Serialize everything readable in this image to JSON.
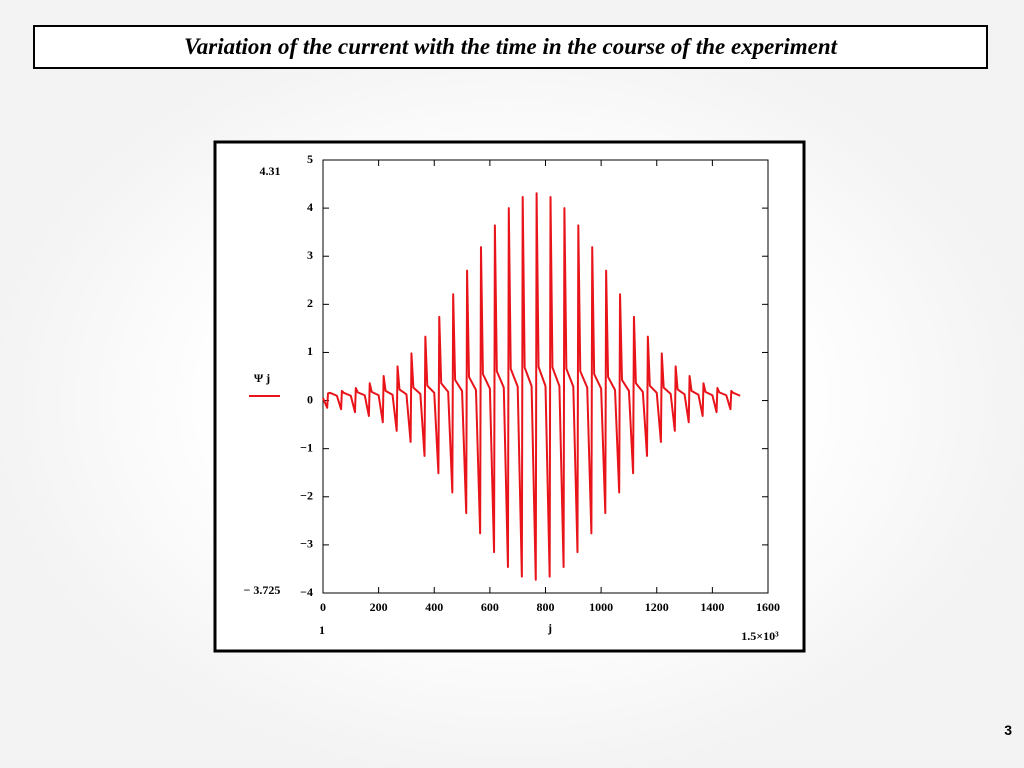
{
  "title": "Variation of the current with the time in the course of the experiment",
  "page_number": "3",
  "chart_data": {
    "type": "line",
    "x_label": "j",
    "plot_range": {
      "ymax": 4.31,
      "ymin": {
        "value": -3.725,
        "label": "− 3.725"
      },
      "xmin": 1,
      "xmax": {
        "value": 1500,
        "label": "1.5×10³"
      }
    },
    "xlim": [
      0,
      1600
    ],
    "xticks": [
      0,
      200,
      400,
      600,
      800,
      1000,
      1200,
      1400,
      1600
    ],
    "ylim": [
      -4,
      5
    ],
    "yticks": [
      {
        "value": -4,
        "label": "−4"
      },
      {
        "value": -3,
        "label": "−3"
      },
      {
        "value": -2,
        "label": "−2"
      },
      {
        "value": -1,
        "label": "−1"
      },
      0,
      1,
      2,
      3,
      4,
      5
    ],
    "grid": false,
    "x": [
      0,
      15,
      18,
      25,
      50,
      65,
      68,
      75,
      100,
      115,
      118,
      125,
      150,
      165,
      168,
      175,
      200,
      215,
      218,
      225,
      250,
      265,
      268,
      275,
      300,
      315,
      318,
      325,
      350,
      365,
      368,
      375,
      400,
      415,
      418,
      425,
      450,
      465,
      468,
      475,
      500,
      515,
      518,
      525,
      550,
      565,
      568,
      575,
      600,
      615,
      618,
      625,
      650,
      665,
      668,
      675,
      700,
      715,
      718,
      725,
      750,
      765,
      768,
      775,
      800,
      815,
      818,
      825,
      850,
      865,
      868,
      875,
      900,
      915,
      918,
      925,
      950,
      965,
      968,
      975,
      1000,
      1015,
      1018,
      1025,
      1050,
      1065,
      1068,
      1075,
      1100,
      1115,
      1118,
      1125,
      1150,
      1165,
      1168,
      1175,
      1200,
      1215,
      1218,
      1225,
      1250,
      1265,
      1268,
      1275,
      1300,
      1315,
      1318,
      1325,
      1350,
      1365,
      1368,
      1375,
      1400,
      1415,
      1418,
      1425,
      1450,
      1465,
      1468,
      1475,
      1500
    ],
    "series": [
      {
        "name": "Ψ j",
        "color": "#e8141a",
        "values": [
          0.05,
          -0.15,
          0.15,
          0.16,
          0.1,
          -0.18,
          0.2,
          0.16,
          0.1,
          -0.24,
          0.26,
          0.17,
          0.11,
          -0.32,
          0.36,
          0.18,
          0.11,
          -0.45,
          0.51,
          0.2,
          0.12,
          -0.63,
          0.71,
          0.23,
          0.13,
          -0.86,
          0.98,
          0.27,
          0.14,
          -1.15,
          1.33,
          0.31,
          0.16,
          -1.51,
          1.74,
          0.36,
          0.18,
          -1.91,
          2.21,
          0.43,
          0.2,
          -2.34,
          2.7,
          0.49,
          0.22,
          -2.76,
          3.19,
          0.55,
          0.25,
          -3.15,
          3.64,
          0.61,
          0.27,
          -3.46,
          4.0,
          0.66,
          0.29,
          -3.66,
          4.23,
          0.69,
          0.3,
          -3.725,
          4.31,
          0.7,
          0.3,
          -3.66,
          4.23,
          0.69,
          0.3,
          -3.46,
          4.0,
          0.66,
          0.29,
          -3.15,
          3.64,
          0.61,
          0.27,
          -2.76,
          3.19,
          0.55,
          0.25,
          -2.34,
          2.7,
          0.49,
          0.22,
          -1.91,
          2.21,
          0.43,
          0.2,
          -1.51,
          1.74,
          0.36,
          0.18,
          -1.15,
          1.33,
          0.31,
          0.16,
          -0.86,
          0.98,
          0.27,
          0.14,
          -0.63,
          0.71,
          0.23,
          0.13,
          -0.45,
          0.51,
          0.2,
          0.12,
          -0.32,
          0.36,
          0.18,
          0.11,
          -0.24,
          0.26,
          0.17,
          0.11,
          -0.18,
          0.2,
          0.16,
          0.1
        ]
      }
    ]
  }
}
